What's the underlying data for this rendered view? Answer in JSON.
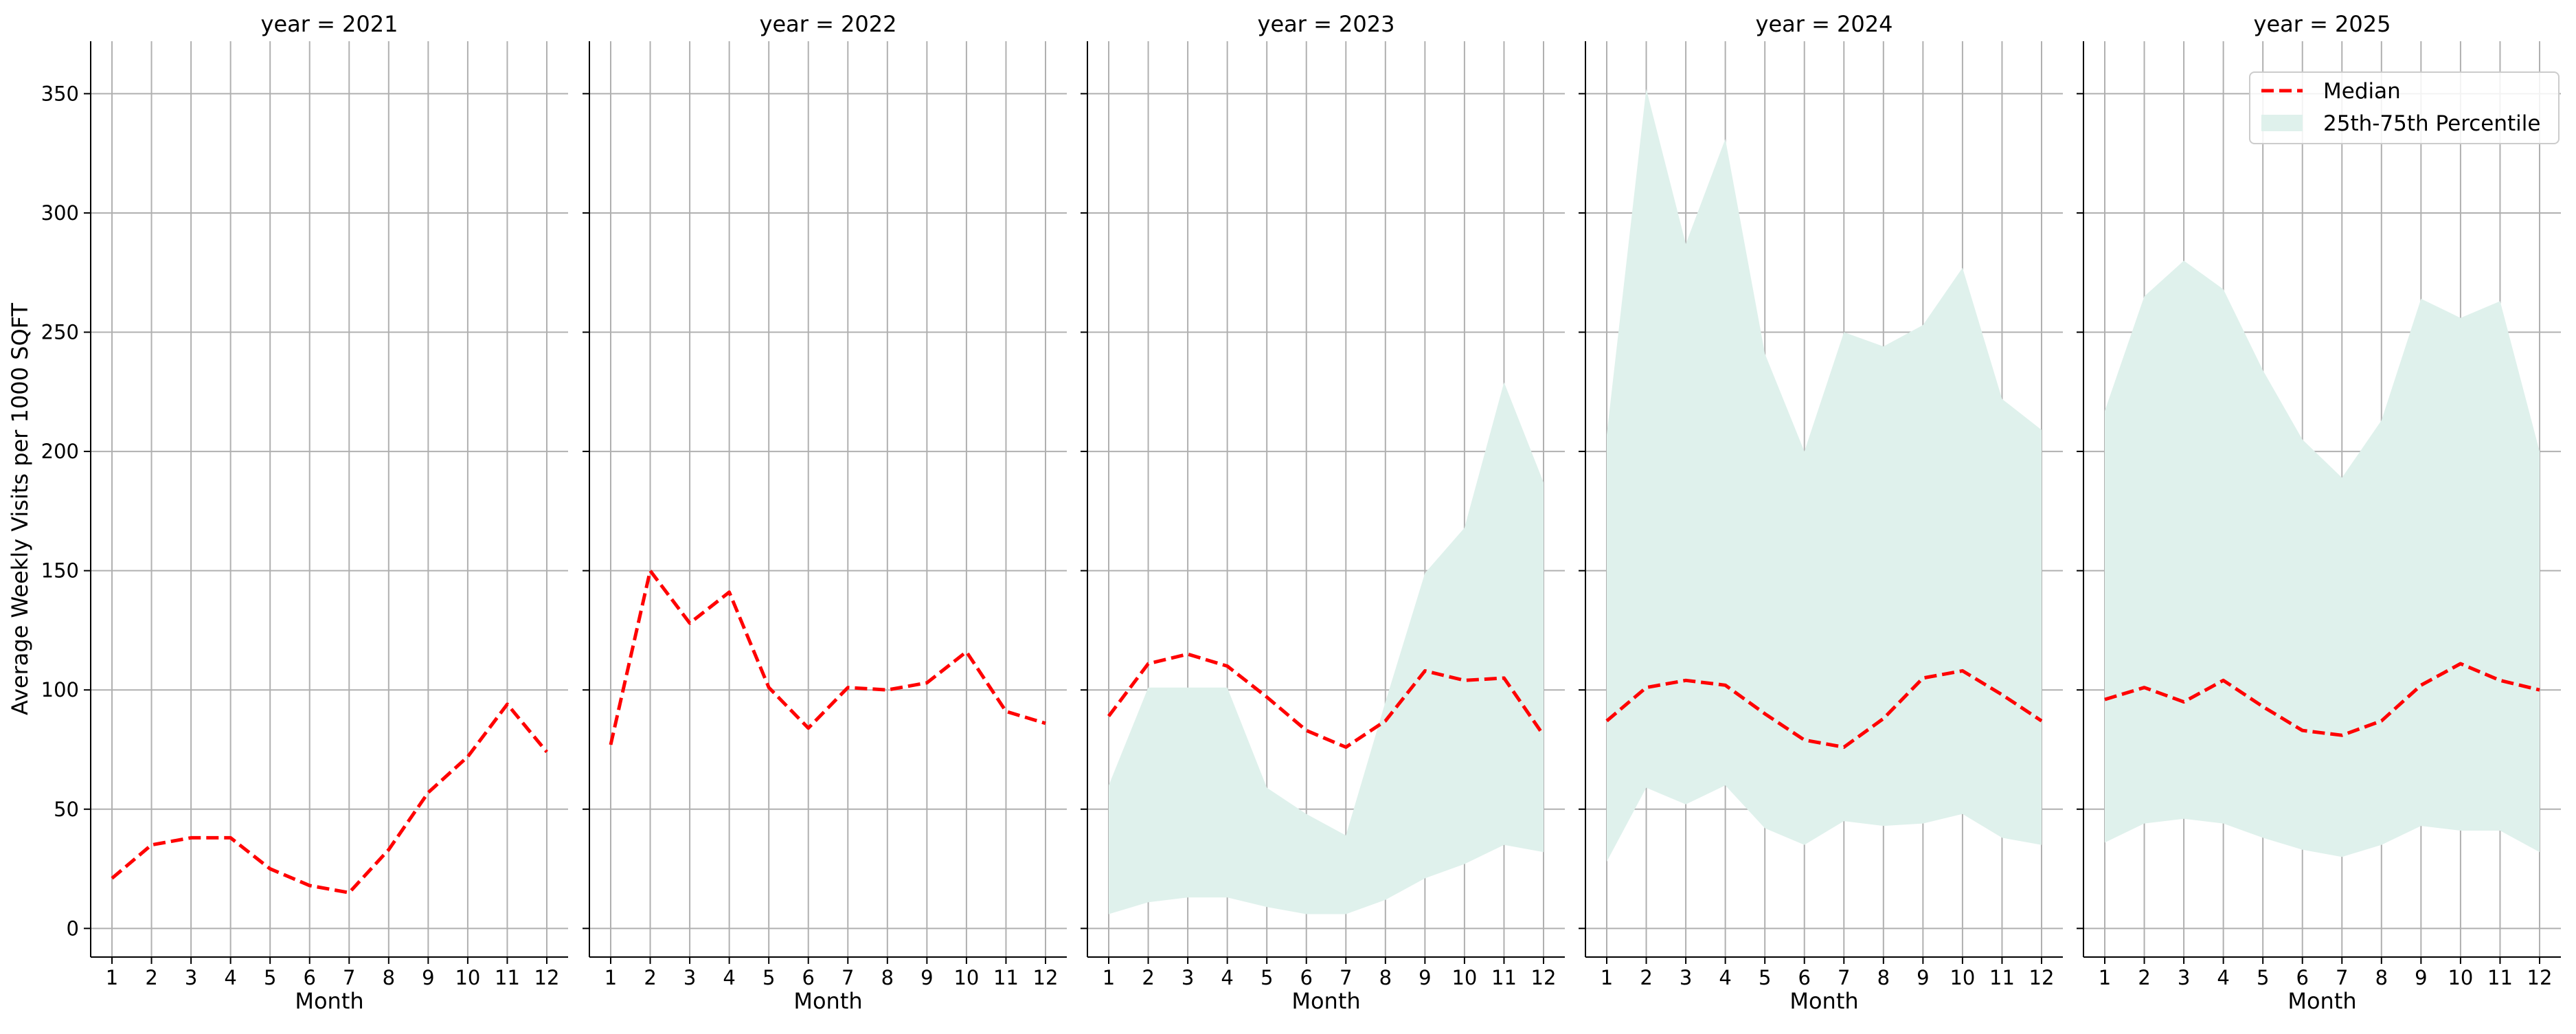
{
  "figure": {
    "ylabel": "Average Weekly Visits per 1000 SQFT",
    "xlabel": "Month",
    "legend": {
      "placement": "top-right",
      "median_label": "Median",
      "band_label": "25th-75th Percentile"
    }
  },
  "colors": {
    "median": "#ff0000",
    "band": "#dff1ec",
    "grid": "#b0b0b0",
    "axis": "#000000"
  },
  "chart_data": [
    {
      "type": "line",
      "title": "year = 2021",
      "xlabel": "Month",
      "ylabel": "Average Weekly Visits per 1000 SQFT",
      "x": [
        1,
        2,
        3,
        4,
        5,
        6,
        7,
        8,
        9,
        10,
        11,
        12
      ],
      "ylim": [
        -12,
        372
      ],
      "yticks": [
        0,
        50,
        100,
        150,
        200,
        250,
        300,
        350
      ],
      "grid": true,
      "series": [
        {
          "name": "Median",
          "values": [
            21,
            35,
            38,
            38,
            25,
            18,
            15,
            33,
            57,
            72,
            94,
            74
          ]
        }
      ],
      "band": null
    },
    {
      "type": "line",
      "title": "year = 2022",
      "xlabel": "Month",
      "x": [
        1,
        2,
        3,
        4,
        5,
        6,
        7,
        8,
        9,
        10,
        11,
        12
      ],
      "ylim": [
        -12,
        372
      ],
      "yticks": [
        0,
        50,
        100,
        150,
        200,
        250,
        300,
        350
      ],
      "grid": true,
      "series": [
        {
          "name": "Median",
          "values": [
            77,
            150,
            128,
            141,
            101,
            84,
            101,
            100,
            103,
            116,
            91,
            86
          ]
        }
      ],
      "band": null
    },
    {
      "type": "area",
      "title": "year = 2023",
      "xlabel": "Month",
      "x": [
        1,
        2,
        3,
        4,
        5,
        6,
        7,
        8,
        9,
        10,
        11,
        12
      ],
      "ylim": [
        -12,
        372
      ],
      "yticks": [
        0,
        50,
        100,
        150,
        200,
        250,
        300,
        350
      ],
      "grid": true,
      "series": [
        {
          "name": "Median",
          "values": [
            89,
            111,
            115,
            110,
            97,
            83,
            76,
            87,
            108,
            104,
            105,
            81
          ]
        }
      ],
      "band": {
        "name": "25th-75th Percentile",
        "lower": [
          6,
          11,
          13,
          13,
          9,
          6,
          6,
          12,
          21,
          27,
          35,
          32
        ],
        "upper": [
          60,
          101,
          101,
          101,
          59,
          48,
          39,
          95,
          149,
          168,
          229,
          187
        ]
      }
    },
    {
      "type": "area",
      "title": "year = 2024",
      "xlabel": "Month",
      "x": [
        1,
        2,
        3,
        4,
        5,
        6,
        7,
        8,
        9,
        10,
        11,
        12
      ],
      "ylim": [
        -12,
        372
      ],
      "yticks": [
        0,
        50,
        100,
        150,
        200,
        250,
        300,
        350
      ],
      "grid": true,
      "series": [
        {
          "name": "Median",
          "values": [
            87,
            101,
            104,
            102,
            90,
            79,
            76,
            88,
            105,
            108,
            98,
            87
          ]
        }
      ],
      "band": {
        "name": "25th-75th Percentile",
        "lower": [
          28,
          59,
          52,
          60,
          42,
          35,
          45,
          43,
          44,
          48,
          38,
          35
        ],
        "upper": [
          207,
          352,
          287,
          331,
          241,
          200,
          250,
          244,
          253,
          277,
          222,
          209
        ]
      }
    },
    {
      "type": "area",
      "title": "year = 2025",
      "xlabel": "Month",
      "x": [
        1,
        2,
        3,
        4,
        5,
        6,
        7,
        8,
        9,
        10,
        11,
        12
      ],
      "ylim": [
        -12,
        372
      ],
      "yticks": [
        0,
        50,
        100,
        150,
        200,
        250,
        300,
        350
      ],
      "grid": true,
      "series": [
        {
          "name": "Median",
          "values": [
            96,
            101,
            95,
            104,
            93,
            83,
            81,
            87,
            102,
            111,
            104,
            100
          ]
        }
      ],
      "band": {
        "name": "25th-75th Percentile",
        "lower": [
          36,
          44,
          46,
          44,
          38,
          33,
          30,
          35,
          43,
          41,
          41,
          32
        ],
        "upper": [
          217,
          265,
          280,
          268,
          234,
          205,
          189,
          213,
          264,
          256,
          263,
          200
        ]
      }
    }
  ]
}
